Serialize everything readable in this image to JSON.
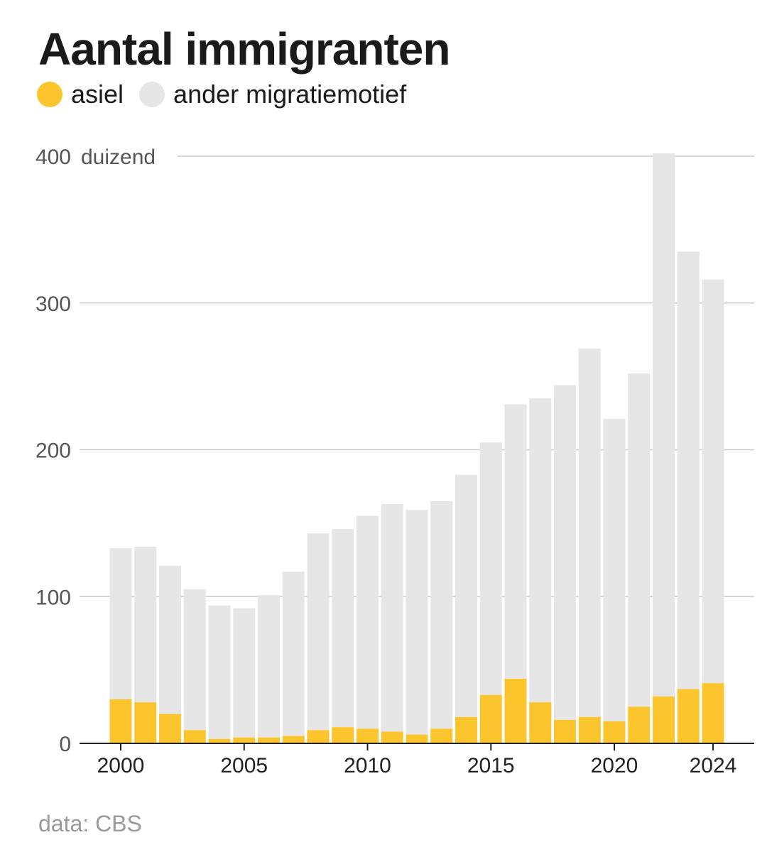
{
  "title": "Aantal immigranten",
  "legend": [
    {
      "label": "asiel",
      "color": "#FCC52D"
    },
    {
      "label": "ander migratiemotief",
      "color": "#E6E6E6"
    }
  ],
  "source": "data: CBS",
  "chart_data": {
    "type": "bar",
    "stacked": true,
    "title": "Aantal immigranten",
    "ylabel_unit": "duizend",
    "ylim": [
      0,
      400
    ],
    "yticks": [
      0,
      100,
      200,
      300,
      400
    ],
    "xticks": [
      2000,
      2005,
      2010,
      2015,
      2020,
      2024
    ],
    "categories": [
      2000,
      2001,
      2002,
      2003,
      2004,
      2005,
      2006,
      2007,
      2008,
      2009,
      2010,
      2011,
      2012,
      2013,
      2014,
      2015,
      2016,
      2017,
      2018,
      2019,
      2020,
      2021,
      2022,
      2023,
      2024
    ],
    "series": [
      {
        "name": "asiel",
        "color": "#FCC52D",
        "values": [
          30,
          28,
          20,
          9,
          3,
          4,
          4,
          5,
          9,
          11,
          10,
          8,
          6,
          10,
          18,
          33,
          44,
          28,
          16,
          18,
          15,
          25,
          32,
          37,
          41
        ]
      },
      {
        "name": "ander migratiemotief",
        "color": "#E6E6E6",
        "values": [
          103,
          106,
          101,
          96,
          91,
          88,
          97,
          112,
          134,
          135,
          145,
          155,
          153,
          155,
          165,
          172,
          187,
          207,
          228,
          251,
          206,
          227,
          370,
          298,
          275
        ]
      }
    ]
  }
}
